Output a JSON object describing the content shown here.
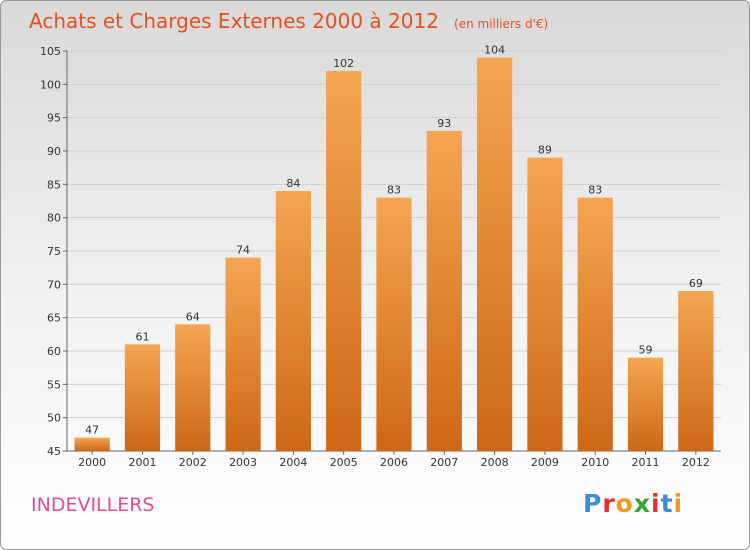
{
  "title": "Achats et Charges Externes 2000 à 2012",
  "unit": "(en milliers d'€)",
  "location": "INDEVILLERS",
  "logo": {
    "text": "Proxiti",
    "letter_colors": [
      "#3a8ed6",
      "#e3302f",
      "#f29a1b",
      "#3aa33d",
      "#e3302f",
      "#3a8ed6",
      "#f29a1b"
    ]
  },
  "colors": {
    "bar_light": "#f5a552",
    "bar_dark": "#cc6818",
    "title": "#e6501f",
    "location": "#e24d8c"
  },
  "chart_data": {
    "type": "bar",
    "title": "Achats et Charges Externes 2000 à 2012",
    "categories": [
      "2000",
      "2001",
      "2002",
      "2003",
      "2004",
      "2005",
      "2006",
      "2007",
      "2008",
      "2009",
      "2010",
      "2011",
      "2012"
    ],
    "values": [
      47,
      61,
      64,
      74,
      84,
      102,
      83,
      93,
      104,
      89,
      83,
      59,
      69
    ],
    "ylim": [
      45,
      105
    ],
    "yticks": [
      45,
      50,
      55,
      60,
      65,
      70,
      75,
      80,
      85,
      90,
      95,
      100,
      105
    ],
    "grid": true,
    "xlabel": "",
    "ylabel": ""
  }
}
